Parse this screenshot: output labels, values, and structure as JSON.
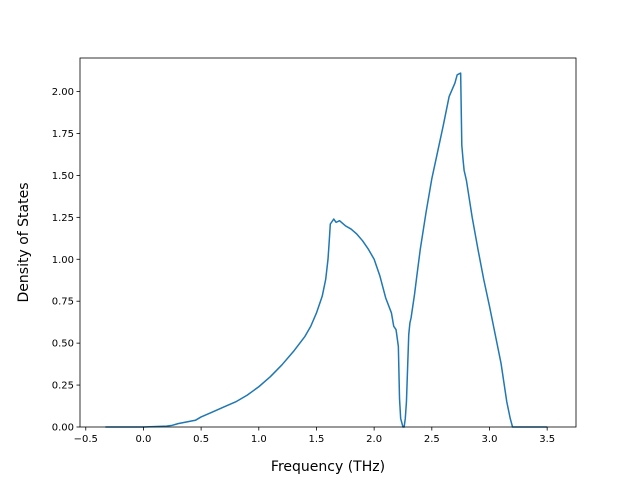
{
  "chart_data": {
    "type": "line",
    "title": "",
    "xlabel": "Frequency (THz)",
    "ylabel": "Density of States",
    "xlim": [
      -0.55,
      3.75
    ],
    "ylim": [
      0.0,
      2.2
    ],
    "grid": false,
    "line_color": "#1f77b4",
    "x_ticks": [
      -0.5,
      0.0,
      0.5,
      1.0,
      1.5,
      2.0,
      2.5,
      3.0,
      3.5
    ],
    "x_tick_labels": [
      "−0.5",
      "0.0",
      "0.5",
      "1.0",
      "1.5",
      "2.0",
      "2.5",
      "3.0",
      "3.5"
    ],
    "y_ticks": [
      0.0,
      0.25,
      0.5,
      0.75,
      1.0,
      1.25,
      1.5,
      1.75,
      2.0
    ],
    "y_tick_labels": [
      "0.00",
      "0.25",
      "0.50",
      "0.75",
      "1.00",
      "1.25",
      "1.50",
      "1.75",
      "2.00"
    ],
    "series": [
      {
        "x": [
          -0.33,
          -0.2,
          0.0,
          0.2,
          0.25,
          0.3,
          0.45,
          0.5,
          0.6,
          0.7,
          0.8,
          0.85,
          0.9,
          1.0,
          1.1,
          1.2,
          1.3,
          1.4,
          1.45,
          1.5,
          1.55,
          1.58,
          1.6,
          1.61,
          1.62,
          1.63,
          1.65,
          1.67,
          1.7,
          1.75,
          1.8,
          1.85,
          1.9,
          1.95,
          2.0,
          2.05,
          2.1,
          2.15,
          2.17,
          2.19,
          2.21,
          2.22,
          2.23,
          2.25,
          2.26,
          2.27,
          2.28,
          2.3,
          2.31,
          2.32,
          2.35,
          2.37,
          2.4,
          2.45,
          2.5,
          2.55,
          2.6,
          2.65,
          2.7,
          2.72,
          2.75,
          2.76,
          2.77,
          2.78,
          2.8,
          2.85,
          2.9,
          2.95,
          3.0,
          3.05,
          3.1,
          3.15,
          3.18,
          3.2,
          3.22,
          3.3,
          3.5
        ],
        "y": [
          0.0,
          0.0,
          0.0,
          0.005,
          0.01,
          0.02,
          0.04,
          0.06,
          0.09,
          0.12,
          0.15,
          0.17,
          0.19,
          0.24,
          0.3,
          0.37,
          0.45,
          0.54,
          0.6,
          0.68,
          0.78,
          0.88,
          1.0,
          1.1,
          1.21,
          1.22,
          1.24,
          1.22,
          1.23,
          1.2,
          1.18,
          1.15,
          1.11,
          1.06,
          1.0,
          0.9,
          0.77,
          0.68,
          0.6,
          0.58,
          0.48,
          0.17,
          0.05,
          0.0,
          0.0,
          0.05,
          0.15,
          0.55,
          0.62,
          0.65,
          0.79,
          0.9,
          1.06,
          1.28,
          1.48,
          1.64,
          1.8,
          1.97,
          2.05,
          2.1,
          2.11,
          1.68,
          1.6,
          1.53,
          1.47,
          1.25,
          1.06,
          0.88,
          0.72,
          0.55,
          0.38,
          0.15,
          0.05,
          0.0,
          0.0,
          0.0,
          0.0
        ]
      }
    ]
  }
}
